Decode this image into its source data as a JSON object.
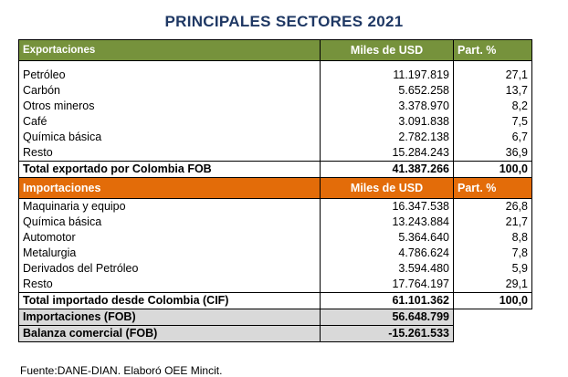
{
  "title": "PRINCIPALES SECTORES  2021",
  "exports": {
    "header": {
      "label": "Exportaciones",
      "value_col": "Miles de USD",
      "share_col": "Part. %"
    },
    "rows": [
      {
        "sector": "Petróleo",
        "value": "11.197.819",
        "share": "27,1"
      },
      {
        "sector": "Carbón",
        "value": "5.652.258",
        "share": "13,7"
      },
      {
        "sector": "Otros mineros",
        "value": "3.378.970",
        "share": "8,2"
      },
      {
        "sector": "Café",
        "value": "3.091.838",
        "share": "7,5"
      },
      {
        "sector": "Química básica",
        "value": "2.782.138",
        "share": "6,7"
      },
      {
        "sector": "Resto",
        "value": "15.284.243",
        "share": "36,9"
      }
    ],
    "total": {
      "label": "Total exportado por Colombia FOB",
      "value": "41.387.266",
      "share": "100,0"
    }
  },
  "imports": {
    "header": {
      "label": "Importaciones",
      "value_col": "Miles de USD",
      "share_col": "Part. %"
    },
    "rows": [
      {
        "sector": "Maquinaria y equipo",
        "value": "16.347.538",
        "share": "26,8"
      },
      {
        "sector": "Química básica",
        "value": "13.243.884",
        "share": "21,7"
      },
      {
        "sector": "Automotor",
        "value": "5.364.640",
        "share": "8,8"
      },
      {
        "sector": "Metalurgia",
        "value": "4.786.624",
        "share": "7,8"
      },
      {
        "sector": "Derivados del Petróleo",
        "value": "3.594.480",
        "share": "5,9"
      },
      {
        "sector": "Resto",
        "value": "17.764.197",
        "share": "29,1"
      }
    ],
    "total": {
      "label": "Total importado desde Colombia (CIF)",
      "value": "61.101.362",
      "share": "100,0"
    }
  },
  "summary": [
    {
      "label": "Importaciones (FOB)",
      "value": "56.648.799"
    },
    {
      "label": "Balanza comercial (FOB)",
      "value": "-15.261.533"
    }
  ],
  "source": "Fuente:DANE-DIAN. Elaboró OEE Mincit.",
  "colors": {
    "title": "#1f3864",
    "exports_header": "#76923c",
    "imports_header": "#e36c09",
    "summary_fill": "#d9d9d9"
  }
}
